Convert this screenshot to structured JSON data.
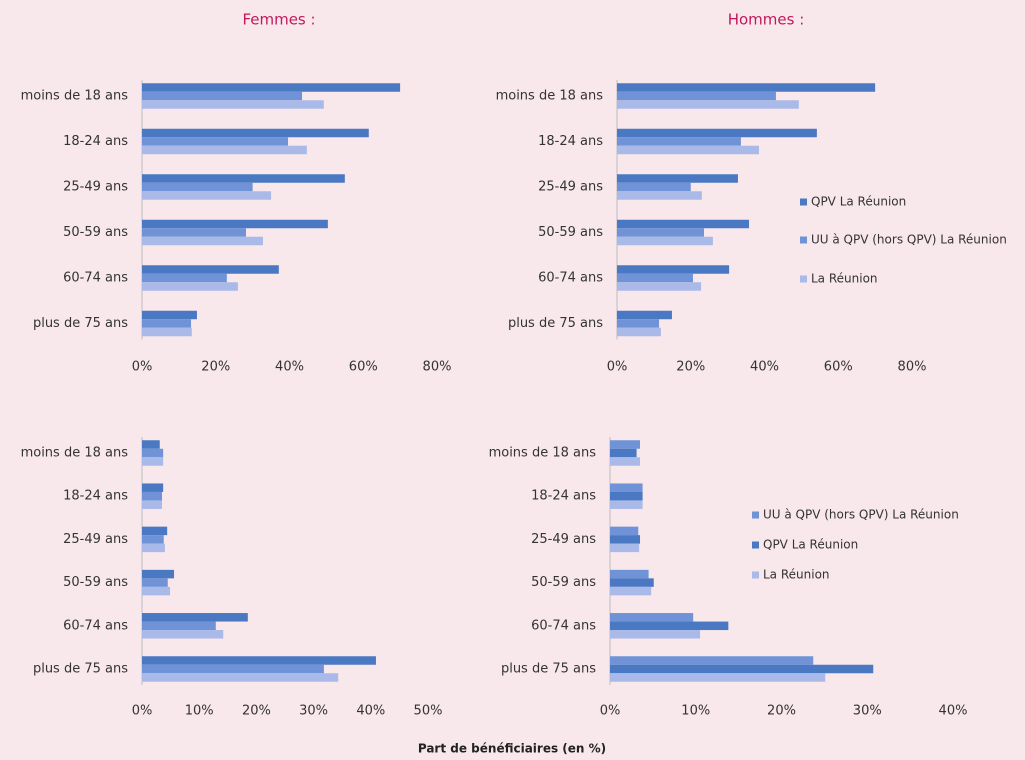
{
  "x_label": "Part de bénéficiaires (en %)",
  "chart_data": [
    {
      "type": "bar",
      "orientation": "horizontal",
      "title": "Femmes :",
      "legend": false,
      "categories": [
        "moins de 18 ans",
        "18-24 ans",
        "25-49 ans",
        "50-59 ans",
        "60-74 ans",
        "plus de 75 ans"
      ],
      "series": [
        {
          "name": "QPV La Réunion",
          "color": "#4a78c2",
          "values": [
            70,
            61.5,
            55,
            50.4,
            37.1,
            14.9
          ]
        },
        {
          "name": "UU à QPV (hors QPV) La Réunion",
          "color": "#6f93d6",
          "values": [
            43.4,
            39.6,
            30,
            28.2,
            23,
            13.3
          ]
        },
        {
          "name": "La Réunion",
          "color": "#a9b9e8",
          "values": [
            49.3,
            44.7,
            35,
            32.8,
            26,
            13.5
          ]
        }
      ],
      "xlim": [
        0,
        80
      ],
      "xticks": [
        {
          "value": 0,
          "label": "0%"
        },
        {
          "value": 20,
          "label": "20%"
        },
        {
          "value": 40,
          "label": "40%"
        },
        {
          "value": 60,
          "label": "60%"
        },
        {
          "value": 80,
          "label": "80%"
        }
      ]
    },
    {
      "type": "bar",
      "orientation": "horizontal",
      "title": "Hommes :",
      "legend": true,
      "categories": [
        "moins de 18 ans",
        "18-24 ans",
        "25-49 ans",
        "50-59 ans",
        "60-74 ans",
        "plus de 75 ans"
      ],
      "series": [
        {
          "name": "QPV La Réunion",
          "color": "#4a78c2",
          "values": [
            70,
            54.2,
            32.8,
            35.8,
            30.4,
            14.9
          ]
        },
        {
          "name": "UU à QPV (hors QPV) La Réunion",
          "color": "#6f93d6",
          "values": [
            43.1,
            33.6,
            20,
            23.6,
            20.6,
            11.4
          ]
        },
        {
          "name": "La Réunion",
          "color": "#a9b9e8",
          "values": [
            49.3,
            38.5,
            23,
            26,
            22.8,
            11.9
          ]
        }
      ],
      "xlim": [
        0,
        80
      ],
      "xticks": [
        {
          "value": 0,
          "label": "0%"
        },
        {
          "value": 20,
          "label": "20%"
        },
        {
          "value": 40,
          "label": "40%"
        },
        {
          "value": 60,
          "label": "60%"
        },
        {
          "value": 80,
          "label": "80%"
        }
      ]
    },
    {
      "type": "bar",
      "orientation": "horizontal",
      "legend": false,
      "categories": [
        "moins de 18 ans",
        "18-24 ans",
        "25-49 ans",
        "50-59 ans",
        "60-74 ans",
        "plus de 75 ans"
      ],
      "series": [
        {
          "name": "QPV La Réunion",
          "color": "#4a78c2",
          "values": [
            3.1,
            3.7,
            4.4,
            5.6,
            18.5,
            40.9
          ]
        },
        {
          "name": "UU à QPV (hors QPV) La Réunion",
          "color": "#6f93d6",
          "values": [
            3.7,
            3.5,
            3.8,
            4.5,
            12.9,
            31.8
          ]
        },
        {
          "name": "La Réunion",
          "color": "#a9b9e8",
          "values": [
            3.7,
            3.5,
            4,
            4.9,
            14.2,
            34.3
          ]
        }
      ],
      "xlim": [
        0,
        50
      ],
      "xticks": [
        {
          "value": 0,
          "label": "0%"
        },
        {
          "value": 10,
          "label": "10%"
        },
        {
          "value": 20,
          "label": "20%"
        },
        {
          "value": 30,
          "label": "30%"
        },
        {
          "value": 40,
          "label": "40%"
        },
        {
          "value": 50,
          "label": "50%"
        }
      ]
    },
    {
      "type": "bar",
      "orientation": "horizontal",
      "legend": true,
      "categories": [
        "moins de 18 ans",
        "18-24 ans",
        "25-49 ans",
        "50-59 ans",
        "60-74 ans",
        "plus de 75 ans"
      ],
      "series": [
        {
          "name": "UU à QPV (hors QPV) La Réunion",
          "color": "#6f93d6",
          "values": [
            3.5,
            3.8,
            3.3,
            4.5,
            9.7,
            23.7
          ]
        },
        {
          "name": "QPV La Réunion",
          "color": "#4a78c2",
          "values": [
            3.1,
            3.8,
            3.5,
            5.1,
            13.8,
            30.7
          ]
        },
        {
          "name": "La Réunion",
          "color": "#a9b9e8",
          "values": [
            3.5,
            3.8,
            3.4,
            4.8,
            10.5,
            25.1
          ]
        }
      ],
      "xlim": [
        0,
        40
      ],
      "xticks": [
        {
          "value": 0,
          "label": "0%"
        },
        {
          "value": 10,
          "label": "10%"
        },
        {
          "value": 20,
          "label": "20%"
        },
        {
          "value": 30,
          "label": "30%"
        },
        {
          "value": 40,
          "label": "40%"
        }
      ]
    }
  ]
}
